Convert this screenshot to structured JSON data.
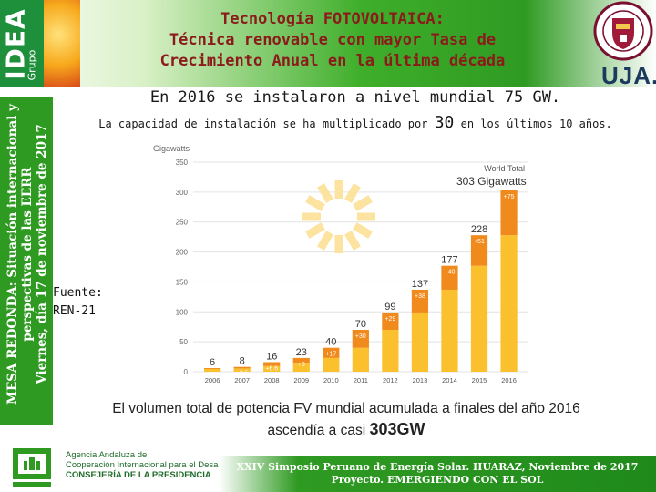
{
  "header": {
    "title_line1": "Tecnología FOTOVOLTAICA:",
    "title_line2": "Técnica renovable con mayor Tasa de",
    "title_line3": "Crecimiento Anual en la última década",
    "logo_left_big": "IDEA",
    "logo_left_small": "Grupo",
    "logo_right": "UJA."
  },
  "left_panel": {
    "line1": "MESA REDONDA: Situación internacional y",
    "line2": "perspectivas de las EERR",
    "line3": "Viernes, día 17 de noviembre de 2017"
  },
  "subtitle": {
    "line1": "En 2016 se instalaron a nivel mundial 75 GW.",
    "line2_prefix": "La capacidad de instalación se ha multiplicado por",
    "line2_number": "30",
    "line2_suffix": "en los últimos 10 años."
  },
  "source": {
    "line1": "Fuente:",
    "line2": "REN-21"
  },
  "caption": {
    "text": "El volumen total de potencia FV mundial acumulada a finales del año 2016 ascendía a casi",
    "highlight": "303GW"
  },
  "footer": {
    "agency_line1": "Agencia Andaluza de",
    "agency_line2": "Cooperación Internacional para el Desarrollo",
    "agency_line3": "CONSEJERÍA DE LA PRESIDENCIA",
    "event_line1": "XXIV Simposio Peruano de Energía Solar. HUARAZ, Noviembre de 2017",
    "event_line2": "Proyecto. EMERGIENDO CON EL SOL"
  },
  "chart_data": {
    "type": "bar",
    "ylabel": "Gigawatts",
    "ylim": [
      0,
      350
    ],
    "yticks": [
      0,
      50,
      100,
      150,
      200,
      250,
      300,
      350
    ],
    "categories": [
      "2006",
      "2007",
      "2008",
      "2009",
      "2010",
      "2011",
      "2012",
      "2013",
      "2014",
      "2015",
      "2016"
    ],
    "totals": [
      6,
      8,
      16,
      23,
      40,
      70,
      99,
      137,
      177,
      228,
      303
    ],
    "total_labels": [
      "6",
      "8",
      "16",
      "23",
      "40",
      "70",
      "99",
      "137",
      "177",
      "228",
      "303 Gigawatts"
    ],
    "additions": [
      1.4,
      2.5,
      6.6,
      8,
      17,
      30,
      29,
      38,
      40,
      51,
      75
    ],
    "addition_labels": [
      "+1.4",
      "+2.5",
      "+6.6",
      "+8",
      "+17",
      "+30",
      "+29",
      "+38",
      "+40",
      "+51",
      "+75"
    ],
    "world_total_label": "World Total",
    "colors": {
      "previous": "#fbc02d",
      "added": "#f08a1c"
    }
  }
}
